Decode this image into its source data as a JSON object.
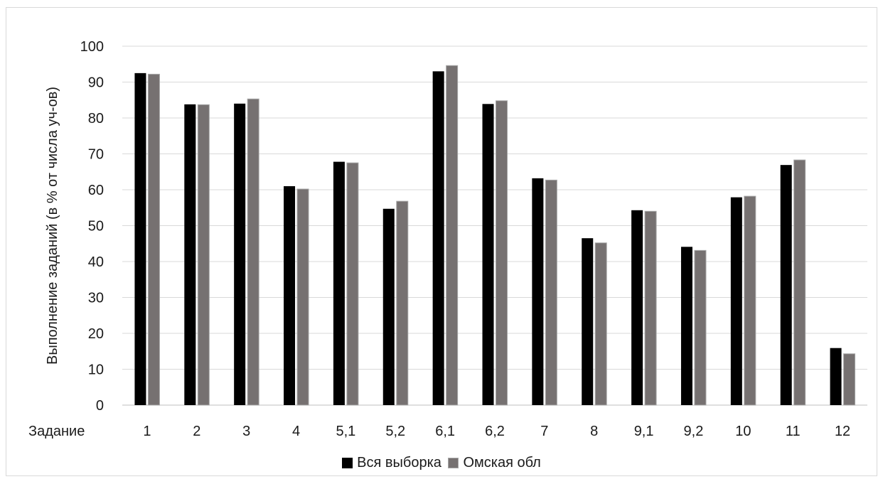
{
  "chart_data": {
    "type": "bar",
    "title": "",
    "xlabel": "Задание",
    "ylabel": "Выполнение заданий (в % от числа уч-ов)",
    "ylim": [
      0,
      100
    ],
    "yticks": [
      0,
      10,
      20,
      30,
      40,
      50,
      60,
      70,
      80,
      90,
      100
    ],
    "grid": true,
    "legend_position": "bottom",
    "categories": [
      "1",
      "2",
      "3",
      "4",
      "5,1",
      "5,2",
      "6,1",
      "6,2",
      "7",
      "8",
      "9,1",
      "9,2",
      "10",
      "11",
      "12"
    ],
    "series": [
      {
        "name": "Вся выборка",
        "color": "#000000",
        "values": [
          92.5,
          83.8,
          84.0,
          61.0,
          67.8,
          54.7,
          93.0,
          83.9,
          63.2,
          46.5,
          54.3,
          44.1,
          57.9,
          66.9,
          15.9
        ]
      },
      {
        "name": "Омская обл",
        "color": "#767171",
        "values": [
          92.2,
          83.7,
          85.3,
          60.2,
          67.5,
          56.8,
          94.6,
          84.8,
          62.7,
          45.2,
          54.0,
          43.1,
          58.2,
          68.3,
          14.3
        ]
      }
    ]
  }
}
